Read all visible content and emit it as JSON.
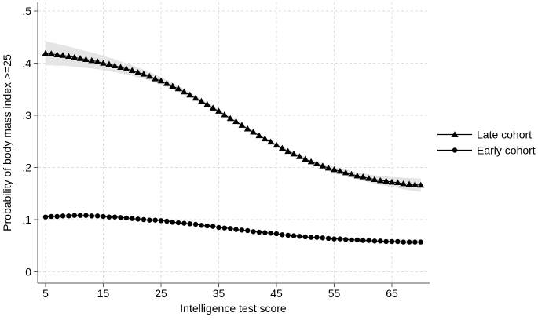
{
  "style": {
    "background": "#ffffff",
    "axis_color": "#5a5a5a",
    "grid_color": "#dddddd",
    "text_color": "#000000",
    "marker_color": "#000000",
    "ci_color": "#e5e5e5"
  },
  "chart_data": {
    "type": "line",
    "title": "",
    "xlabel": "Intelligence test score",
    "ylabel": "Probability of body mass index >=25",
    "xlim": [
      3.6,
      71.5
    ],
    "ylim": [
      0,
      0.5
    ],
    "grid": "both-dashed-light-gray",
    "legend_position": "right-outside-middle",
    "x_ticks": [
      5,
      15,
      25,
      35,
      45,
      55,
      65
    ],
    "x_tick_labels": [
      "5",
      "15",
      "25",
      "35",
      "45",
      "55",
      "65"
    ],
    "y_ticks": [
      0,
      0.1,
      0.2,
      0.3,
      0.4,
      0.5
    ],
    "y_tick_labels": [
      "0",
      ".1",
      ".2",
      ".3",
      ".4",
      ".5"
    ],
    "x": [
      5,
      6,
      7,
      8,
      9,
      10,
      11,
      12,
      13,
      14,
      15,
      16,
      17,
      18,
      19,
      20,
      21,
      22,
      23,
      24,
      25,
      26,
      27,
      28,
      29,
      30,
      31,
      32,
      33,
      34,
      35,
      36,
      37,
      38,
      39,
      40,
      41,
      42,
      43,
      44,
      45,
      46,
      47,
      48,
      49,
      50,
      51,
      52,
      53,
      54,
      55,
      56,
      57,
      58,
      59,
      60,
      61,
      62,
      63,
      64,
      65,
      66,
      67,
      68,
      69,
      70
    ],
    "series": [
      {
        "name": "Late cohort",
        "marker": "triangle",
        "color": "#000000",
        "values": [
          0.419,
          0.418,
          0.416,
          0.415,
          0.413,
          0.411,
          0.409,
          0.407,
          0.405,
          0.403,
          0.4,
          0.398,
          0.395,
          0.392,
          0.389,
          0.386,
          0.382,
          0.379,
          0.375,
          0.37,
          0.366,
          0.361,
          0.356,
          0.351,
          0.345,
          0.339,
          0.333,
          0.327,
          0.321,
          0.314,
          0.308,
          0.301,
          0.294,
          0.288,
          0.281,
          0.274,
          0.268,
          0.261,
          0.255,
          0.249,
          0.243,
          0.237,
          0.231,
          0.226,
          0.221,
          0.216,
          0.211,
          0.207,
          0.203,
          0.199,
          0.196,
          0.193,
          0.19,
          0.187,
          0.184,
          0.182,
          0.179,
          0.177,
          0.175,
          0.174,
          0.172,
          0.171,
          0.169,
          0.168,
          0.167,
          0.166
        ],
        "ci_halfwidth": [
          0.023,
          0.0219,
          0.0209,
          0.0199,
          0.0189,
          0.018,
          0.017,
          0.0161,
          0.0153,
          0.0145,
          0.0137,
          0.0129,
          0.0121,
          0.0114,
          0.0107,
          0.0101,
          0.0094,
          0.0088,
          0.0083,
          0.0077,
          0.0072,
          0.0067,
          0.0063,
          0.0059,
          0.0055,
          0.0051,
          0.0048,
          0.0045,
          0.0042,
          0.0039,
          0.0037,
          0.0035,
          0.0034,
          0.0032,
          0.0031,
          0.0031,
          0.003,
          0.003,
          0.003,
          0.0031,
          0.0031,
          0.0032,
          0.0033,
          0.0035,
          0.0036,
          0.0038,
          0.004,
          0.0043,
          0.0045,
          0.0048,
          0.0052,
          0.0055,
          0.0059,
          0.0063,
          0.0067,
          0.0071,
          0.0076,
          0.0081,
          0.0086,
          0.0092,
          0.0097,
          0.0103,
          0.011,
          0.0116,
          0.0123,
          0.013
        ]
      },
      {
        "name": "Early cohort",
        "marker": "circle",
        "color": "#000000",
        "values": [
          0.105,
          0.106,
          0.106,
          0.107,
          0.107,
          0.108,
          0.108,
          0.108,
          0.107,
          0.107,
          0.106,
          0.105,
          0.105,
          0.104,
          0.103,
          0.102,
          0.101,
          0.1,
          0.099,
          0.099,
          0.098,
          0.097,
          0.095,
          0.094,
          0.093,
          0.092,
          0.091,
          0.089,
          0.088,
          0.087,
          0.085,
          0.084,
          0.083,
          0.081,
          0.08,
          0.079,
          0.077,
          0.076,
          0.075,
          0.074,
          0.073,
          0.071,
          0.07,
          0.069,
          0.068,
          0.067,
          0.066,
          0.066,
          0.065,
          0.064,
          0.063,
          0.063,
          0.062,
          0.061,
          0.061,
          0.06,
          0.06,
          0.059,
          0.059,
          0.058,
          0.058,
          0.058,
          0.057,
          0.057,
          0.057,
          0.057
        ],
        "ci_halfwidth": [
          0.0045,
          0.0043,
          0.0041,
          0.004,
          0.0038,
          0.0036,
          0.0035,
          0.0033,
          0.0032,
          0.003,
          0.0029,
          0.0028,
          0.0027,
          0.0026,
          0.0024,
          0.0023,
          0.0022,
          0.0022,
          0.0021,
          0.002,
          0.0019,
          0.0019,
          0.0018,
          0.0017,
          0.0017,
          0.0016,
          0.0016,
          0.0016,
          0.0015,
          0.0015,
          0.0015,
          0.0015,
          0.0015,
          0.0015,
          0.0015,
          0.0015,
          0.0015,
          0.0016,
          0.0016,
          0.0016,
          0.0017,
          0.0017,
          0.0018,
          0.0019,
          0.0019,
          0.002,
          0.0021,
          0.0022,
          0.0022,
          0.0023,
          0.0024,
          0.0026,
          0.0027,
          0.0028,
          0.0029,
          0.003,
          0.0032,
          0.0033,
          0.0035,
          0.0036,
          0.0038,
          0.004,
          0.0041,
          0.0043,
          0.0045,
          0.0047
        ]
      }
    ]
  },
  "legend": {
    "items": [
      {
        "label": "Late cohort",
        "marker": "triangle"
      },
      {
        "label": "Early cohort",
        "marker": "circle"
      }
    ]
  }
}
